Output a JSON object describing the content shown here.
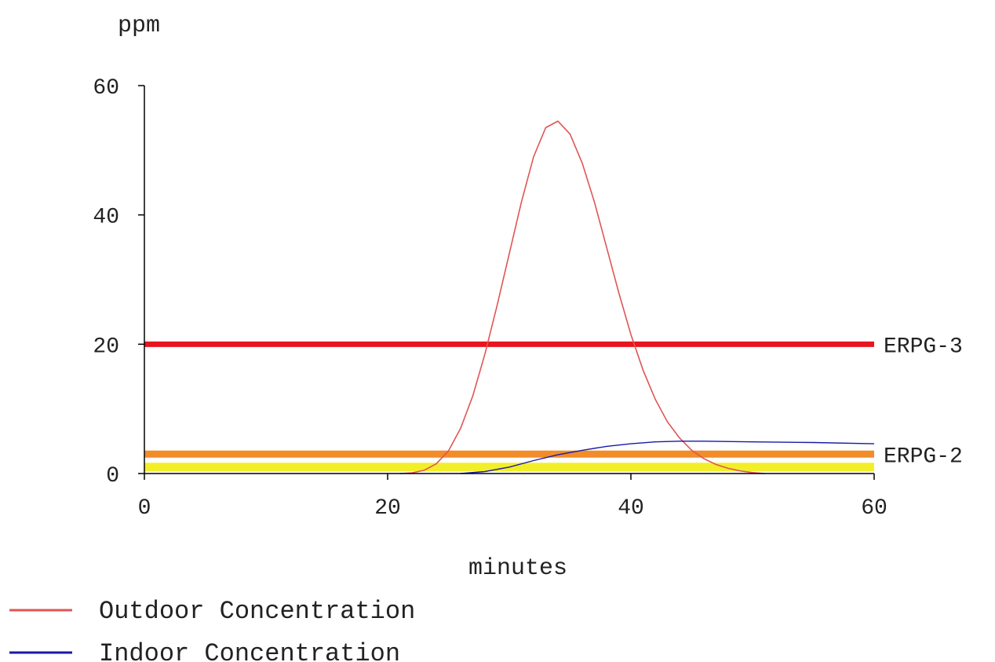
{
  "chart_data": {
    "type": "line",
    "ylabel": "ppm",
    "xlabel": "minutes",
    "xlim": [
      0,
      60
    ],
    "ylim": [
      0,
      60
    ],
    "x_ticks": [
      0,
      20,
      40,
      60
    ],
    "y_ticks": [
      0,
      20,
      40,
      60
    ],
    "grid": false,
    "series": [
      {
        "name": "Outdoor Concentration",
        "color": "#e05555",
        "points": [
          [
            21,
            0
          ],
          [
            22,
            0.1
          ],
          [
            23,
            0.5
          ],
          [
            24,
            1.5
          ],
          [
            25,
            3.5
          ],
          [
            26,
            7
          ],
          [
            27,
            12
          ],
          [
            28,
            18.5
          ],
          [
            29,
            26
          ],
          [
            30,
            34
          ],
          [
            31,
            42
          ],
          [
            32,
            49
          ],
          [
            33,
            53.5
          ],
          [
            34,
            54.5
          ],
          [
            35,
            52.5
          ],
          [
            36,
            48
          ],
          [
            37,
            42
          ],
          [
            38,
            35
          ],
          [
            39,
            28
          ],
          [
            40,
            21.5
          ],
          [
            41,
            16
          ],
          [
            42,
            11.5
          ],
          [
            43,
            8
          ],
          [
            44,
            5.5
          ],
          [
            45,
            3.6
          ],
          [
            46,
            2.3
          ],
          [
            47,
            1.4
          ],
          [
            48,
            0.8
          ],
          [
            49,
            0.4
          ],
          [
            50,
            0.15
          ],
          [
            51,
            0
          ]
        ]
      },
      {
        "name": "Indoor Concentration",
        "color": "#1a1aa6",
        "points": [
          [
            26,
            0
          ],
          [
            28,
            0.3
          ],
          [
            30,
            1.0
          ],
          [
            32,
            2.0
          ],
          [
            34,
            2.9
          ],
          [
            36,
            3.6
          ],
          [
            38,
            4.2
          ],
          [
            40,
            4.6
          ],
          [
            42,
            4.9
          ],
          [
            44,
            5.0
          ],
          [
            46,
            5.0
          ],
          [
            50,
            4.9
          ],
          [
            55,
            4.8
          ],
          [
            60,
            4.6
          ]
        ]
      }
    ],
    "reference_lines": [
      {
        "label": "ERPG-3",
        "value": 20,
        "color": "#e8141e"
      },
      {
        "label": "ERPG-2",
        "value": 3,
        "color": "#f28c28"
      },
      {
        "label": "",
        "value": 1,
        "color": "#f2ef2a"
      }
    ]
  },
  "legend": [
    {
      "label": "Outdoor Concentration",
      "color": "#e05555"
    },
    {
      "label": "Indoor Concentration",
      "color": "#1a1aa6"
    }
  ]
}
